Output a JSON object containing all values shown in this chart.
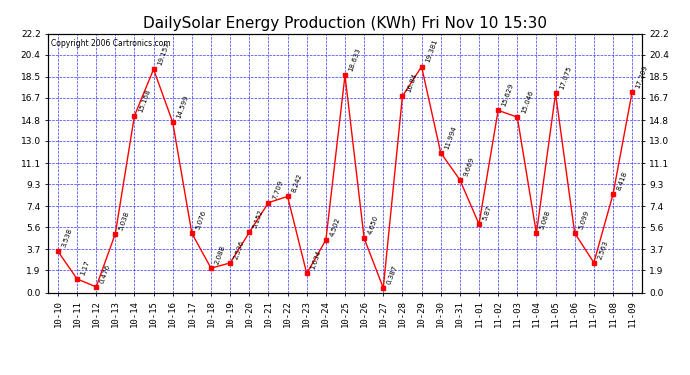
{
  "title": "DailySolar Energy Production (KWh) Fri Nov 10 15:30",
  "copyright": "Copyright 2006 Cartronics.com",
  "x_labels": [
    "10-10",
    "10-11",
    "10-12",
    "10-13",
    "10-14",
    "10-15",
    "10-16",
    "10-17",
    "10-18",
    "10-19",
    "10-20",
    "10-21",
    "10-22",
    "10-23",
    "10-24",
    "10-25",
    "10-26",
    "10-27",
    "10-28",
    "10-29",
    "10-30",
    "10-31",
    "11-01",
    "11-02",
    "11-03",
    "11-04",
    "11-05",
    "11-06",
    "11-07",
    "11-08",
    "11-09"
  ],
  "values": [
    3.538,
    1.17,
    0.476,
    5.038,
    15.158,
    19.157,
    14.599,
    5.076,
    2.088,
    2.536,
    5.152,
    7.709,
    8.242,
    1.634,
    4.502,
    18.633,
    4.65,
    0.387,
    16.84,
    19.381,
    11.994,
    9.669,
    5.87,
    15.629,
    15.046,
    5.068,
    17.075,
    5.099,
    2.563,
    8.418,
    17.209
  ],
  "point_labels": [
    "3.538",
    "1.17",
    "0.476",
    "5.038",
    "15.158",
    "19.157",
    "14.599",
    "5.076",
    "2.088",
    "2.536",
    "5.152",
    "7.709",
    "8.242",
    "1.634",
    "4.502",
    "18.633",
    "4.650",
    "0.387",
    "16.84",
    "19.381",
    "11.994",
    "9.669",
    "5.87",
    "15.629",
    "15.046",
    "5.068",
    "17.075",
    "5.099",
    "2.563",
    "8.418",
    "17.209"
  ],
  "yticks": [
    0.0,
    1.9,
    3.7,
    5.6,
    7.4,
    9.3,
    11.1,
    13.0,
    14.8,
    16.7,
    18.5,
    20.4,
    22.2
  ],
  "ylim": [
    0.0,
    22.2
  ],
  "line_color": "red",
  "marker_color": "red",
  "bg_color": "white",
  "grid_color": "blue",
  "title_fontsize": 11,
  "label_fontsize": 6,
  "tick_fontsize": 6.5
}
